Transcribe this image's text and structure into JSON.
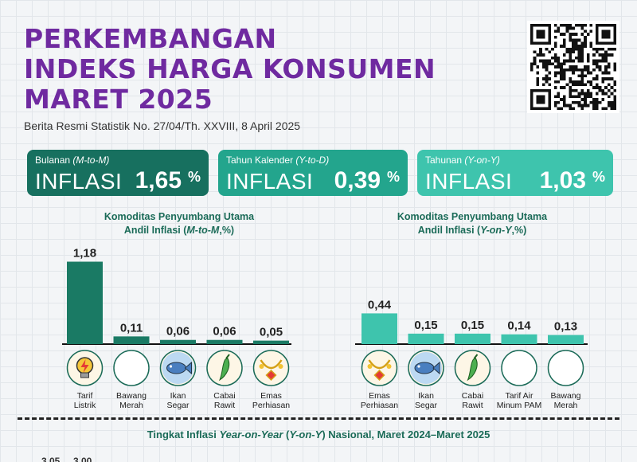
{
  "header": {
    "title_lines": [
      "PERKEMBANGAN",
      "INDEKS HARGA KONSUMEN",
      "MARET 2025"
    ],
    "subtitle": "Berita Resmi Statistik No. 27/04/Th. XXVIII, 8 April 2025"
  },
  "cards": [
    {
      "period": "Bulanan",
      "period_abbr": "(M-to-M)",
      "keyword": "INFLASI",
      "value": "1,65",
      "unit": "%",
      "color": "#17705f"
    },
    {
      "period": "Tahun Kalender",
      "period_abbr": "(Y-to-D)",
      "keyword": "INFLASI",
      "value": "0,39",
      "unit": "%",
      "color": "#23a58d"
    },
    {
      "period": "Tahunan",
      "period_abbr": "(Y-on-Y)",
      "keyword": "INFLASI",
      "value": "1,03",
      "unit": "%",
      "color": "#3ec4ad"
    }
  ],
  "chart_data": [
    {
      "type": "bar",
      "title_line1": "Komoditas Penyumbang Utama",
      "title_line2_pre": "Andil Inflasi (",
      "title_line2_em": "M-to-M",
      "title_line2_post": ",%)",
      "categories": [
        "Tarif Listrik",
        "Bawang Merah",
        "Ikan Segar",
        "Cabai Rawit",
        "Emas Perhiasan"
      ],
      "category_lines": [
        [
          "Tarif",
          "Listrik"
        ],
        [
          "Bawang",
          "Merah"
        ],
        [
          "Ikan",
          "Segar"
        ],
        [
          "Cabai",
          "Rawit"
        ],
        [
          "Emas",
          "Perhiasan"
        ]
      ],
      "values": [
        1.18,
        0.11,
        0.06,
        0.06,
        0.05
      ],
      "value_labels": [
        "1,18",
        "0,11",
        "0,06",
        "0,06",
        "0,05"
      ],
      "icons": [
        "lightning-bulb-icon",
        "onion-icon",
        "fish-icon",
        "chili-icon",
        "gold-necklace-icon"
      ],
      "bar_color": "#1a7a64",
      "ylim": [
        0,
        1.3
      ]
    },
    {
      "type": "bar",
      "title_line1": "Komoditas Penyumbang Utama",
      "title_line2_pre": "Andil Inflasi (",
      "title_line2_em": "Y-on-Y",
      "title_line2_post": ",%)",
      "categories": [
        "Emas Perhiasan",
        "Ikan Segar",
        "Cabai Rawit",
        "Tarif Air Minum PAM",
        "Bawang Merah"
      ],
      "category_lines": [
        [
          "Emas",
          "Perhiasan"
        ],
        [
          "Ikan",
          "Segar"
        ],
        [
          "Cabai",
          "Rawit"
        ],
        [
          "Tarif Air",
          "Minum PAM"
        ],
        [
          "Bawang",
          "Merah"
        ]
      ],
      "values": [
        0.44,
        0.15,
        0.15,
        0.14,
        0.13
      ],
      "value_labels": [
        "0,44",
        "0,15",
        "0,15",
        "0,14",
        "0,13"
      ],
      "icons": [
        "gold-necklace-icon",
        "fish-icon",
        "chili-icon",
        "water-tap-icon",
        "onion-icon"
      ],
      "bar_color": "#3ec4ad",
      "ylim": [
        0,
        1.3
      ]
    }
  ],
  "footer": {
    "pre": "Tingkat Inflasi ",
    "em1": "Year-on-Year",
    "mid": " (",
    "em2": "Y-on-Y",
    "post": ") Nasional, Maret 2024–Maret 2025"
  },
  "peek_values": [
    "3,05",
    "3,00"
  ]
}
